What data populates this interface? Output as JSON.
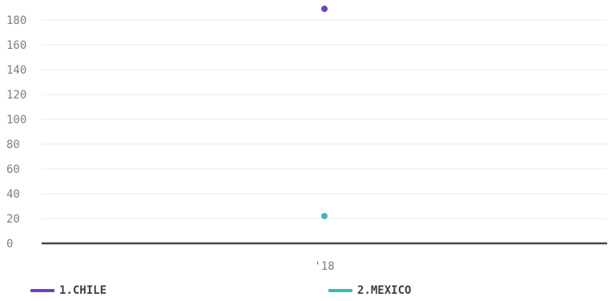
{
  "chart_data": {
    "type": "line",
    "categories": [
      "'18"
    ],
    "ylim": [
      0,
      180
    ],
    "yticks": [
      0,
      20,
      40,
      60,
      80,
      100,
      120,
      140,
      160,
      180
    ],
    "grid": true,
    "legend_position": "bottom",
    "series": [
      {
        "name": "1.CHILE",
        "color": "#6f42c1",
        "values": [
          189
        ]
      },
      {
        "name": "2.MEXICO",
        "color": "#3fb8b5",
        "values": [
          22
        ]
      }
    ]
  }
}
